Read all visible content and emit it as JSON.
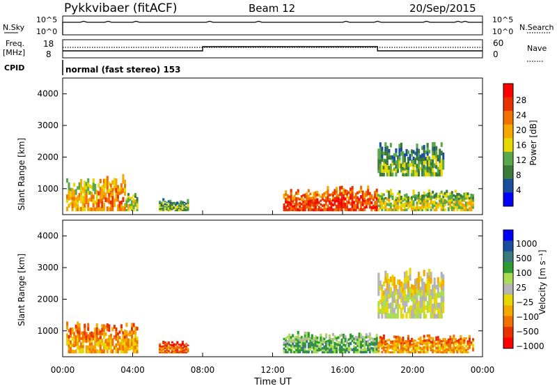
{
  "header": {
    "title": "Pykkvibaer (fitACF)",
    "beam": "Beam 12",
    "date": "20/Sep/2015"
  },
  "nsky_panel": {
    "left_label": "N.Sky",
    "right_label": "N.Search",
    "y_tick_top": "10^5",
    "y_tick_bottom": "10^0",
    "line_style": "solid (N.Sky), dotted (N.Search)"
  },
  "freq_panel": {
    "left_label_1": "Freq.",
    "left_label_2": "[MHz]",
    "right_label": "Nave",
    "y_ticks_left": [
      "18",
      "8"
    ],
    "y_ticks_right": [
      "60",
      "0"
    ],
    "cpid_label": "CPID",
    "cpid_text": "normal (fast stereo) 153"
  },
  "colors": {
    "power_scale": [
      "#0000ff",
      "#1a4fa0",
      "#3c7a3c",
      "#5aa84a",
      "#e6d800",
      "#f5a800",
      "#f07000",
      "#e83000",
      "#ff0000"
    ],
    "velocity_scale": [
      "#ff0000",
      "#e83000",
      "#f07000",
      "#f5a800",
      "#e6d800",
      "#b4b4b4",
      "#aadd55",
      "#2e9c2e",
      "#3a7a7a",
      "#1a4fa0",
      "#0000ff"
    ],
    "ground_scatter": "#bebebe"
  },
  "chart_data": [
    {
      "type": "heatmap",
      "panel": "power",
      "ylabel": "Slant Range [km]",
      "ylim": [
        180,
        4500
      ],
      "yticks": [
        "4000",
        "3000",
        "2000",
        "1000"
      ],
      "xlim_hours": [
        0,
        24
      ],
      "colorbar_label": "Power [dB]",
      "colorbar_ticks": [
        "28",
        "24",
        "20",
        "16",
        "12",
        "8",
        "4"
      ],
      "scatter_regions": [
        {
          "t0": 0.2,
          "t1": 2.0,
          "r0": 300,
          "r1": 1350,
          "level": 5
        },
        {
          "t0": 2.0,
          "t1": 3.6,
          "r0": 300,
          "r1": 1500,
          "level": 6
        },
        {
          "t0": 3.6,
          "t1": 4.3,
          "r0": 300,
          "r1": 900,
          "level": 4
        },
        {
          "t0": 5.5,
          "t1": 7.2,
          "r0": 300,
          "r1": 700,
          "level": 3
        },
        {
          "t0": 12.6,
          "t1": 15.0,
          "r0": 300,
          "r1": 1000,
          "level": 7
        },
        {
          "t0": 15.0,
          "t1": 18.0,
          "r0": 300,
          "r1": 1100,
          "level": 7
        },
        {
          "t0": 18.0,
          "t1": 23.5,
          "r0": 300,
          "r1": 1000,
          "level": 4
        },
        {
          "t0": 18.0,
          "t1": 21.8,
          "r0": 1400,
          "r1": 2500,
          "level": 3
        }
      ]
    },
    {
      "type": "heatmap",
      "panel": "velocity",
      "ylabel": "Slant Range [km]",
      "ylim": [
        180,
        4500
      ],
      "yticks": [
        "4000",
        "3000",
        "2000",
        "1000"
      ],
      "xlim_hours": [
        0,
        24
      ],
      "xticks": [
        "00:00",
        "04:00",
        "08:00",
        "12:00",
        "16:00",
        "20:00",
        "00:00"
      ],
      "xlabel": "Time UT",
      "colorbar_label": "Velocity [m s⁻¹]",
      "colorbar_ticks": [
        "1000",
        "500",
        "100",
        "25",
        "−25",
        "−100",
        "−500",
        "−1000"
      ],
      "scatter_regions": [
        {
          "t0": 0.2,
          "t1": 4.3,
          "r0": 300,
          "r1": 1300,
          "level": 3
        },
        {
          "t0": 5.5,
          "t1": 7.2,
          "r0": 300,
          "r1": 700,
          "level": 2
        },
        {
          "t0": 12.6,
          "t1": 18.0,
          "r0": 300,
          "r1": 1000,
          "level": 7
        },
        {
          "t0": 18.0,
          "t1": 23.5,
          "r0": 300,
          "r1": 900,
          "level": 3
        },
        {
          "t0": 18.0,
          "t1": 21.8,
          "r0": 1400,
          "r1": 3000,
          "level": 5
        }
      ]
    }
  ]
}
